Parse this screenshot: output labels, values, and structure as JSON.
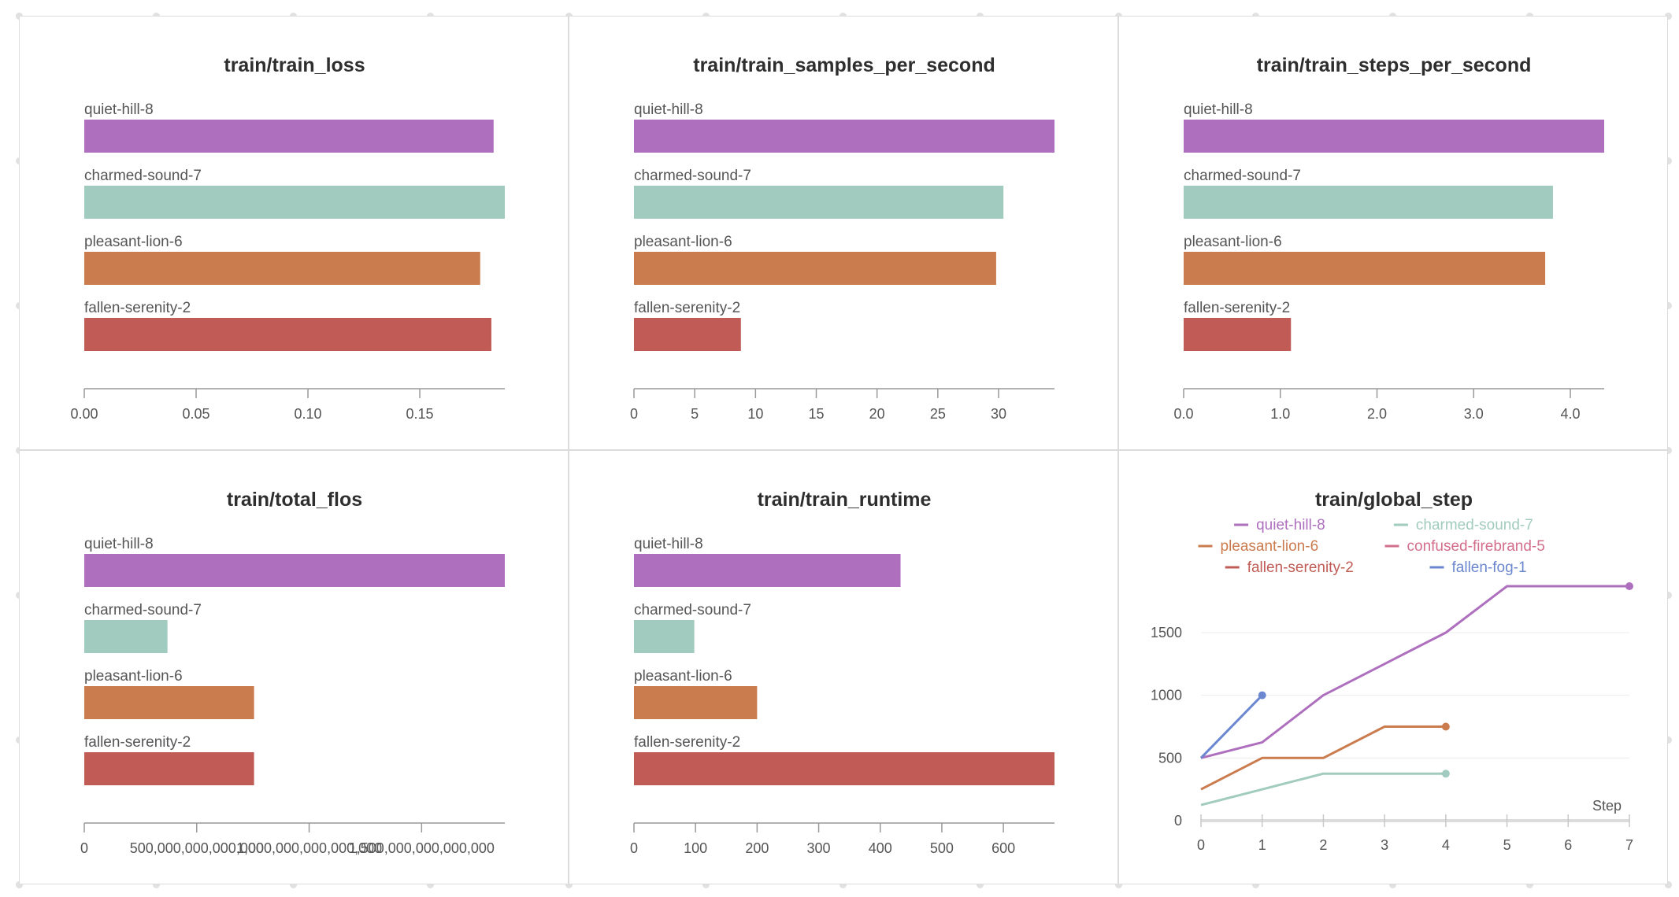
{
  "run_colors": {
    "quiet-hill-8": "#ae70be",
    "charmed-sound-7": "#a1cbbe",
    "pleasant-lion-6": "#cb7c4f",
    "confused-firebrand-5": "#d36e8c",
    "fallen-serenity-2": "#c05c55",
    "fallen-fog-1": "#6b87cf"
  },
  "chart_data": [
    {
      "type": "bar",
      "title": "train/train_loss",
      "categories": [
        "quiet-hill-8",
        "charmed-sound-7",
        "pleasant-lion-6",
        "fallen-serenity-2"
      ],
      "values": [
        0.183,
        0.188,
        0.177,
        0.182
      ],
      "xlim": [
        0,
        0.188
      ],
      "ticks": [
        0,
        0.05,
        0.1,
        0.15
      ],
      "tick_labels": [
        "0.00",
        "0.05",
        "0.10",
        "0.15"
      ]
    },
    {
      "type": "bar",
      "title": "train/train_samples_per_second",
      "categories": [
        "quiet-hill-8",
        "charmed-sound-7",
        "pleasant-lion-6",
        "fallen-serenity-2"
      ],
      "values": [
        34.6,
        30.4,
        29.8,
        8.8
      ],
      "xlim": [
        0,
        34.6
      ],
      "ticks": [
        0,
        5,
        10,
        15,
        20,
        25,
        30
      ],
      "tick_labels": [
        "0",
        "5",
        "10",
        "15",
        "20",
        "25",
        "30"
      ]
    },
    {
      "type": "bar",
      "title": "train/train_steps_per_second",
      "categories": [
        "quiet-hill-8",
        "charmed-sound-7",
        "pleasant-lion-6",
        "fallen-serenity-2"
      ],
      "values": [
        4.35,
        3.82,
        3.74,
        1.11
      ],
      "xlim": [
        0,
        4.35
      ],
      "ticks": [
        0,
        1,
        2,
        3,
        4
      ],
      "tick_labels": [
        "0.0",
        "1.0",
        "2.0",
        "3.0",
        "4.0"
      ]
    },
    {
      "type": "bar",
      "title": "train/total_flos",
      "categories": [
        "quiet-hill-8",
        "charmed-sound-7",
        "pleasant-lion-6",
        "fallen-serenity-2"
      ],
      "values": [
        1870000000000000,
        370000000000000,
        755000000000000,
        755000000000000
      ],
      "xlim": [
        0,
        1870000000000000
      ],
      "ticks": [
        0,
        500000000000000,
        1000000000000000,
        1500000000000000
      ],
      "tick_labels": [
        "0",
        "500,000,000,000,000",
        "1,000,000,000,000,000",
        "1,500,000,000,000,000"
      ]
    },
    {
      "type": "bar",
      "title": "train/train_runtime",
      "categories": [
        "quiet-hill-8",
        "charmed-sound-7",
        "pleasant-lion-6",
        "fallen-serenity-2"
      ],
      "values": [
        433,
        98,
        200,
        683
      ],
      "xlim": [
        0,
        683
      ],
      "ticks": [
        0,
        100,
        200,
        300,
        400,
        500,
        600
      ],
      "tick_labels": [
        "0",
        "100",
        "200",
        "300",
        "400",
        "500",
        "600"
      ]
    },
    {
      "type": "line",
      "title": "train/global_step",
      "xlabel": "Step",
      "xlim": [
        0,
        7
      ],
      "ylim": [
        0,
        1870
      ],
      "xticks": [
        0,
        1,
        2,
        3,
        4,
        5,
        6,
        7
      ],
      "yticks": [
        0,
        500,
        1000,
        1500
      ],
      "legend": [
        "quiet-hill-8",
        "charmed-sound-7",
        "pleasant-lion-6",
        "confused-firebrand-5",
        "fallen-serenity-2",
        "fallen-fog-1"
      ],
      "series": [
        {
          "name": "quiet-hill-8",
          "x": [
            0,
            1,
            2,
            3,
            4,
            5,
            6,
            7
          ],
          "y": [
            500,
            625,
            1000,
            1250,
            1500,
            1870,
            1870,
            1870
          ]
        },
        {
          "name": "charmed-sound-7",
          "x": [
            0,
            1,
            2,
            3,
            4
          ],
          "y": [
            125,
            250,
            375,
            375,
            375
          ]
        },
        {
          "name": "pleasant-lion-6",
          "x": [
            0,
            1,
            2,
            3,
            4
          ],
          "y": [
            250,
            500,
            500,
            750,
            750
          ]
        },
        {
          "name": "confused-firebrand-5",
          "x": [],
          "y": []
        },
        {
          "name": "fallen-serenity-2",
          "x": [],
          "y": []
        },
        {
          "name": "fallen-fog-1",
          "x": [
            0,
            1
          ],
          "y": [
            500,
            1000
          ]
        }
      ]
    }
  ]
}
